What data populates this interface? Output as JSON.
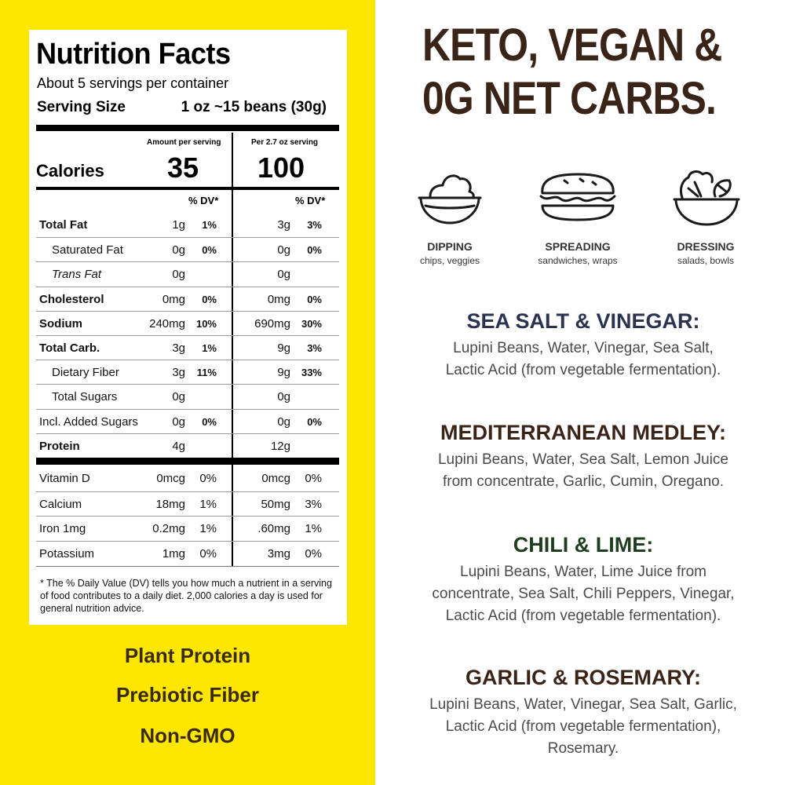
{
  "nutrition": {
    "title": "Nutrition Facts",
    "servings": "About 5 servings per container",
    "serving_size_label": "Serving Size",
    "serving_size_value": "1 oz ~15 beans (30g)",
    "col1_header": "Amount per serving",
    "col2_header": "Per 2.7 oz serving",
    "calories_label": "Calories",
    "calories_1": "35",
    "calories_2": "100",
    "dv_header": "% DV*",
    "rows": [
      {
        "name": "Total Fat",
        "a1": "1g",
        "p1": "1%",
        "a2": "3g",
        "p2": "3%"
      },
      {
        "name": "Saturated Fat",
        "a1": "0g",
        "p1": "0%",
        "a2": "0g",
        "p2": "0%"
      },
      {
        "name": "Trans Fat",
        "a1": "0g",
        "p1": "",
        "a2": "0g",
        "p2": ""
      },
      {
        "name": "Cholesterol",
        "a1": "0mg",
        "p1": "0%",
        "a2": "0mg",
        "p2": "0%"
      },
      {
        "name": "Sodium",
        "a1": "240mg",
        "p1": "10%",
        "a2": "690mg",
        "p2": "30%"
      },
      {
        "name": "Total Carb.",
        "a1": "3g",
        "p1": "1%",
        "a2": "9g",
        "p2": "3%"
      },
      {
        "name": "Dietary Fiber",
        "a1": "3g",
        "p1": "11%",
        "a2": "9g",
        "p2": "33%"
      },
      {
        "name": "Total Sugars",
        "a1": "0g",
        "p1": "",
        "a2": "0g",
        "p2": ""
      },
      {
        "name": "Incl. Added Sugars",
        "a1": "0g",
        "p1": "0%",
        "a2": "0g",
        "p2": "0%"
      },
      {
        "name": "Protein",
        "a1": "4g",
        "p1": "",
        "a2": "12g",
        "p2": ""
      }
    ],
    "vitamins": [
      {
        "name": "Vitamin D",
        "a1": "0mcg",
        "p1": "0%",
        "a2": "0mcg",
        "p2": "0%"
      },
      {
        "name": "Calcium",
        "a1": "18mg",
        "p1": "1%",
        "a2": "50mg",
        "p2": "3%"
      },
      {
        "name": "Iron 1mg",
        "a1": "0.2mg",
        "p1": "1%",
        "a2": ".60mg",
        "p2": "1%"
      },
      {
        "name": "Potassium",
        "a1": "1mg",
        "p1": "0%",
        "a2": "3mg",
        "p2": "0%"
      }
    ],
    "footnote": "* The % Daily Value (DV) tells you how much a nutrient in a serving of food contributes to a daily diet. 2,000 calories a day is used for general nutrition advice."
  },
  "benefits": [
    "Plant Protein",
    "Prebiotic Fiber",
    "Non-GMO"
  ],
  "headline": {
    "line1": "KETO, VEGAN &",
    "line2": "0G NET CARBS."
  },
  "uses": [
    {
      "icon": "dip-bowl-icon",
      "label": "DIPPING",
      "sub": "chips, veggies"
    },
    {
      "icon": "sandwich-icon",
      "label": "SPREADING",
      "sub": "sandwiches, wraps"
    },
    {
      "icon": "salad-bowl-icon",
      "label": "DRESSING",
      "sub": "salads, bowls"
    }
  ],
  "flavors": [
    {
      "title": "SEA SALT & VINEGAR:",
      "color": "#2b3350",
      "lines": [
        "Lupini Beans, Water, Vinegar, Sea Salt,",
        "Lactic Acid (from vegetable fermentation)."
      ]
    },
    {
      "title": "MEDITERRANEAN MEDLEY:",
      "color": "#3a2418",
      "lines": [
        "Lupini Beans, Water, Sea Salt, Lemon Juice",
        "from concentrate, Garlic, Cumin, Oregano."
      ]
    },
    {
      "title": "CHILI & LIME:",
      "color": "#1f3d1f",
      "lines": [
        "Lupini Beans, Water, Lime Juice from",
        "concentrate, Sea Salt, Chili Peppers, Vinegar,",
        "Lactic Acid (from vegetable fermentation)."
      ]
    },
    {
      "title": "GARLIC & ROSEMARY:",
      "color": "#3a2418",
      "lines": [
        "Lupini Beans, Water, Vinegar, Sea Salt, Garlic,",
        "Lactic Acid (from vegetable fermentation),",
        "Rosemary."
      ]
    }
  ],
  "colors": {
    "panel_yellow": "#fde700",
    "headline_brown": "#3a2418",
    "benefit_text": "#3a2a10"
  }
}
